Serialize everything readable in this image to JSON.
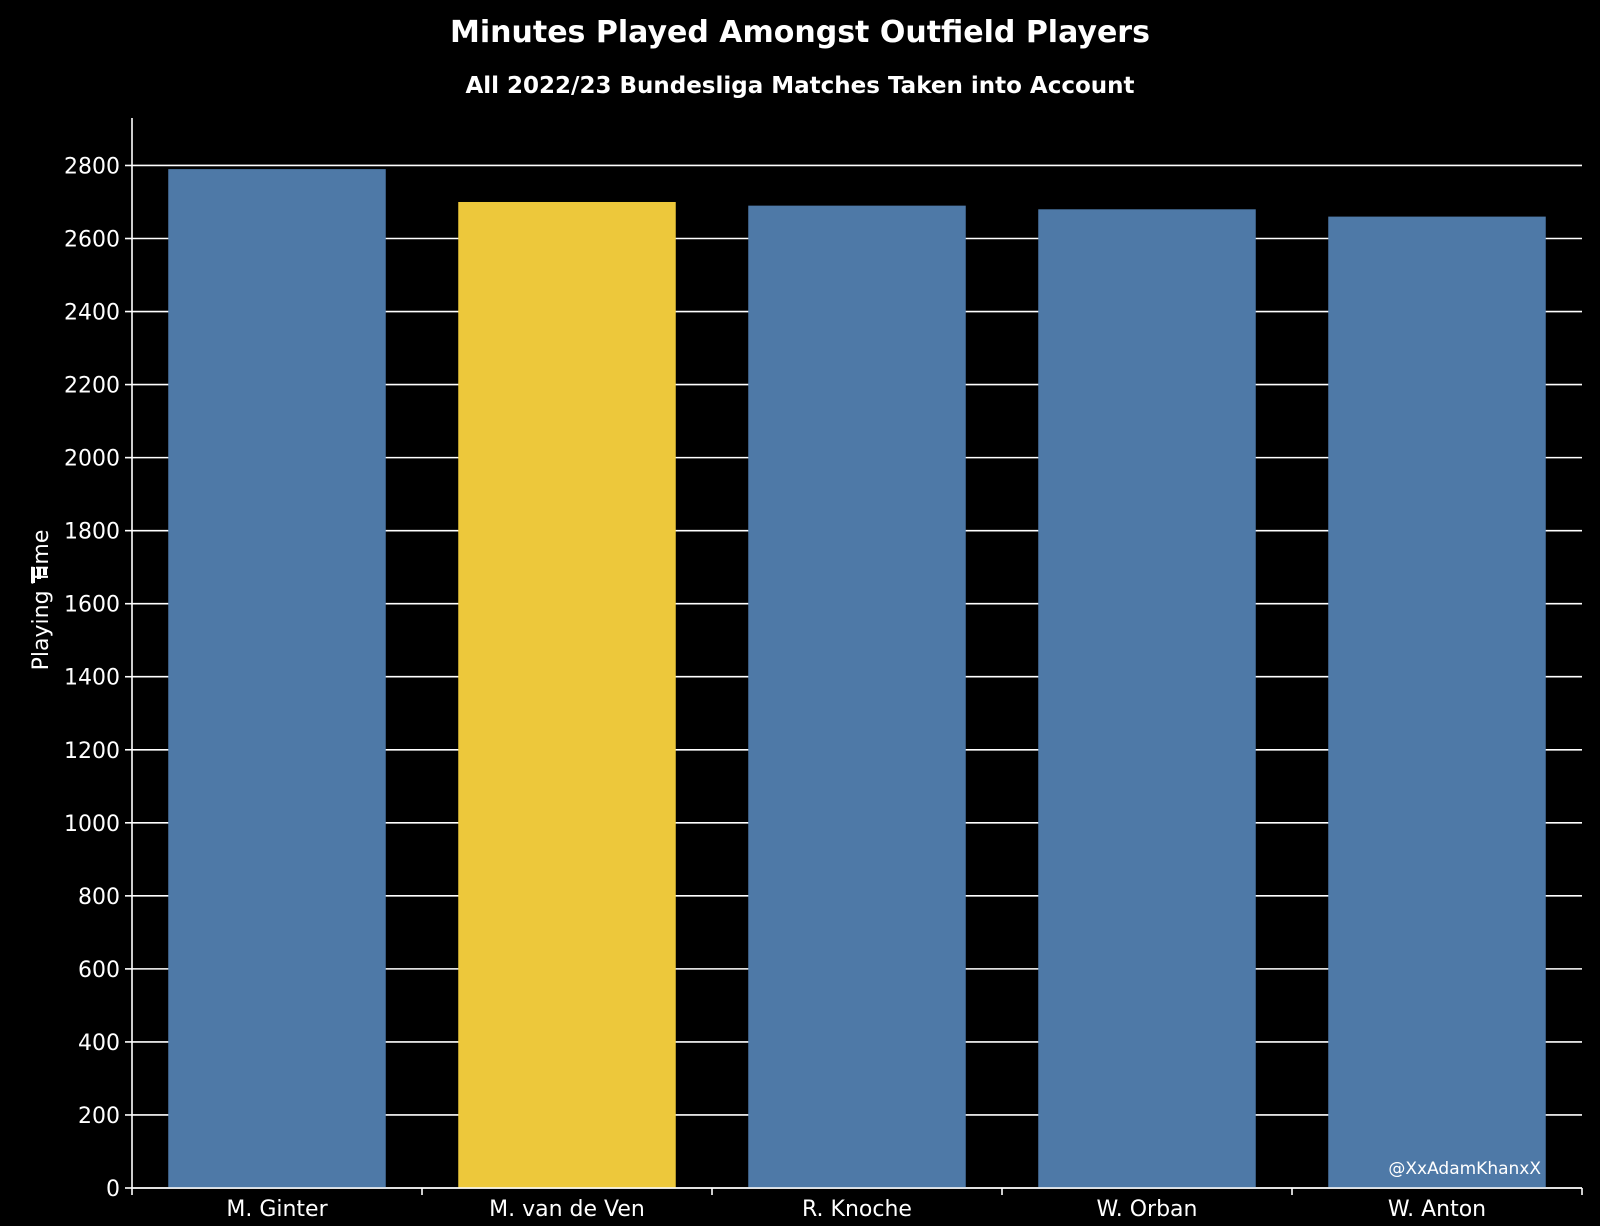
{
  "chart_data": {
    "type": "bar",
    "title": "Minutes Played Amongst Outfield Players",
    "subtitle": "All 2022/23 Bundesliga Matches Taken into Account",
    "ylabel": "Playing Time",
    "xlabel": "",
    "categories": [
      "M. Ginter",
      "M. van de Ven",
      "R. Knoche",
      "W. Orban",
      "W. Anton"
    ],
    "values": [
      2790,
      2700,
      2690,
      2680,
      2660
    ],
    "bar_colors": [
      "#4e79a7",
      "#edc83b",
      "#4e79a7",
      "#4e79a7",
      "#4e79a7"
    ],
    "ylim": [
      0,
      2930
    ],
    "yticks": [
      0,
      200,
      400,
      600,
      800,
      1000,
      1200,
      1400,
      1600,
      1800,
      2000,
      2200,
      2400,
      2600,
      2800
    ],
    "grid": true,
    "sort_icon": "sort-descending-icon",
    "watermark": "@XxAdamKhanxX",
    "colors": {
      "background": "#000000",
      "text": "#ffffff",
      "gridline": "#ffffff"
    }
  }
}
